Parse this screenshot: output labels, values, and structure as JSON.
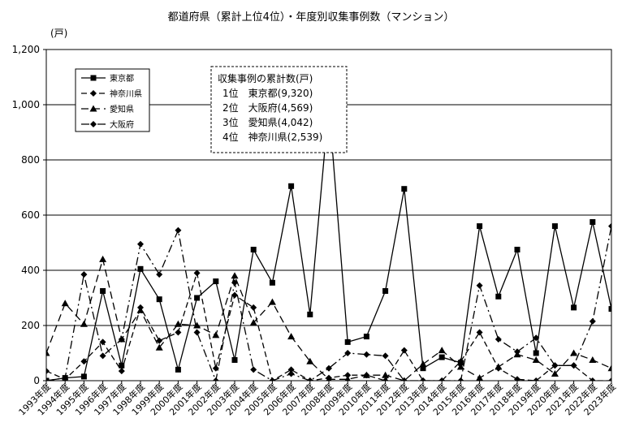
{
  "chart_data": {
    "type": "line",
    "title": "都道府県（累計上位4位）・年度別収集事例数（マンション）",
    "ylabel": "(戸)",
    "ylim": [
      0,
      1200
    ],
    "yticks": [
      "0",
      "200",
      "400",
      "600",
      "800",
      "1,000",
      "1,200"
    ],
    "grid": "horizontal",
    "legend_position": "top-left",
    "categories": [
      "1993年度",
      "1994年度",
      "1995年度",
      "1996年度",
      "1997年度",
      "1998年度",
      "1999年度",
      "2000年度",
      "2001年度",
      "2002年度",
      "2003年度",
      "2004年度",
      "2005年度",
      "2006年度",
      "2007年度",
      "2008年度",
      "2009年度",
      "2010年度",
      "2011年度",
      "2012年度",
      "2013年度",
      "2014年度",
      "2015年度",
      "2016年度",
      "2017年度",
      "2018年度",
      "2019年度",
      "2020年度",
      "2021年度",
      "2022年度",
      "2023年度"
    ],
    "series": [
      {
        "name": "東京都",
        "style": "solid",
        "marker": "square",
        "values": [
          0,
          10,
          15,
          325,
          55,
          405,
          295,
          40,
          300,
          360,
          75,
          475,
          355,
          705,
          240,
          1000,
          140,
          160,
          325,
          695,
          45,
          85,
          65,
          560,
          305,
          475,
          100,
          560,
          265,
          575,
          260
        ]
      },
      {
        "name": "神奈川県",
        "style": "dash",
        "marker": "diamond",
        "values": [
          35,
          5,
          70,
          140,
          35,
          265,
          145,
          175,
          390,
          45,
          310,
          265,
          0,
          40,
          0,
          10,
          20,
          20,
          0,
          110,
          0,
          0,
          70,
          175,
          45,
          5,
          0,
          55,
          55,
          0,
          0
        ]
      },
      {
        "name": "愛知県",
        "style": "longdash",
        "marker": "triangle",
        "values": [
          100,
          280,
          205,
          440,
          150,
          255,
          120,
          205,
          200,
          165,
          380,
          210,
          285,
          160,
          70,
          5,
          5,
          20,
          20,
          0,
          60,
          110,
          50,
          10,
          50,
          95,
          75,
          25,
          100,
          75,
          45
        ]
      },
      {
        "name": "大阪府",
        "style": "dashdot",
        "marker": "diamond",
        "values": [
          0,
          10,
          385,
          90,
          150,
          495,
          385,
          545,
          175,
          0,
          355,
          40,
          0,
          25,
          0,
          45,
          100,
          95,
          90,
          0,
          0,
          0,
          0,
          345,
          150,
          105,
          155,
          55,
          55,
          215,
          560
        ]
      }
    ],
    "note": {
      "title": "収集事例の累計数(戸)",
      "lines": [
        "1位　東京都(9,320)",
        "2位　大阪府(4,569)",
        "3位　愛知県(4,042)",
        "4位　神奈川県(2,539)"
      ]
    }
  }
}
